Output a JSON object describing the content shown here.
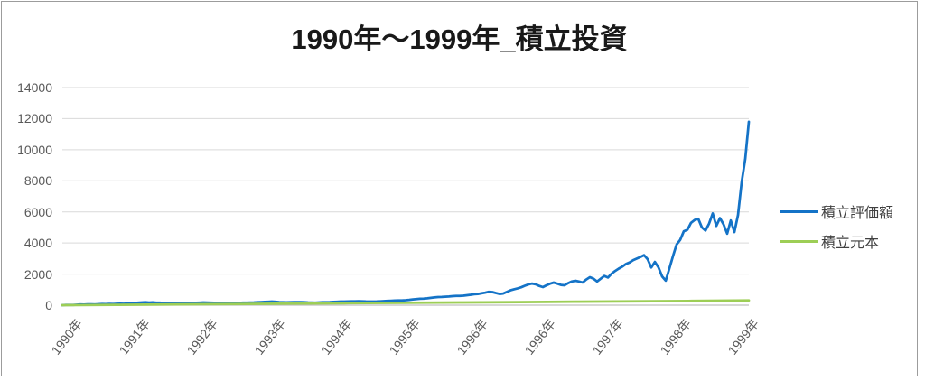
{
  "title": "1990年～1999年_積立投資",
  "colors": {
    "series1_blue": "#1473C7",
    "series2_green": "#9DCE56",
    "gridline": "#D9D9D9",
    "axis_line": "#BFBFBF",
    "axis_label_text": "#595959",
    "legend_text": "#404040",
    "title_text": "#191919",
    "frame_border": "#9C9C9C"
  },
  "chart_data": {
    "type": "line",
    "title": "1990年～1999年_積立投資",
    "xlabel": "",
    "ylabel": "",
    "grid": "horizontal",
    "legend_position": "right",
    "y_axis": {
      "min": 0,
      "max": 14000,
      "step": 2000
    },
    "y_tick_labels": [
      "0",
      "2000",
      "4000",
      "6000",
      "8000",
      "10000",
      "12000",
      "14000"
    ],
    "x_tick_labels": [
      "1990年",
      "1991年",
      "1992年",
      "1993年",
      "1994年",
      "1995年",
      "1996年",
      "1996年",
      "1997年",
      "1998年",
      "1999年"
    ],
    "series": [
      {
        "name": "積立評価額",
        "color": "#1473C7",
        "values": [
          0,
          10,
          20,
          15,
          30,
          40,
          35,
          50,
          55,
          45,
          60,
          70,
          65,
          80,
          70,
          85,
          95,
          90,
          105,
          120,
          140,
          160,
          175,
          185,
          170,
          180,
          165,
          155,
          130,
          110,
          95,
          100,
          115,
          120,
          110,
          125,
          135,
          150,
          165,
          175,
          170,
          160,
          150,
          140,
          130,
          120,
          130,
          140,
          150,
          145,
          155,
          165,
          170,
          175,
          185,
          195,
          210,
          220,
          230,
          215,
          200,
          190,
          180,
          190,
          195,
          200,
          195,
          185,
          175,
          170,
          165,
          175,
          185,
          190,
          200,
          210,
          220,
          230,
          235,
          240,
          245,
          250,
          255,
          250,
          240,
          235,
          230,
          240,
          250,
          260,
          275,
          285,
          295,
          300,
          310,
          320,
          340,
          370,
          390,
          410,
          420,
          440,
          470,
          500,
          520,
          530,
          545,
          560,
          580,
          600,
          590,
          610,
          640,
          670,
          700,
          720,
          760,
          800,
          860,
          840,
          780,
          720,
          750,
          850,
          950,
          1020,
          1080,
          1150,
          1250,
          1330,
          1390,
          1340,
          1240,
          1160,
          1280,
          1380,
          1450,
          1380,
          1300,
          1280,
          1420,
          1520,
          1570,
          1520,
          1460,
          1650,
          1800,
          1700,
          1520,
          1700,
          1880,
          1780,
          2020,
          2200,
          2350,
          2480,
          2650,
          2750,
          2900,
          3000,
          3100,
          3220,
          2950,
          2420,
          2780,
          2420,
          1850,
          1580,
          2350,
          3150,
          3900,
          4200,
          4750,
          4850,
          5300,
          5480,
          5560,
          5000,
          4800,
          5250,
          5900,
          5100,
          5600,
          5200,
          4600,
          5450,
          4700,
          5800,
          7900,
          9400,
          11800
        ]
      },
      {
        "name": "積立元本",
        "color": "#9DCE56",
        "values": [
          0,
          25,
          50,
          75,
          100,
          125,
          150,
          175,
          200,
          225,
          250,
          275,
          300
        ]
      }
    ]
  }
}
